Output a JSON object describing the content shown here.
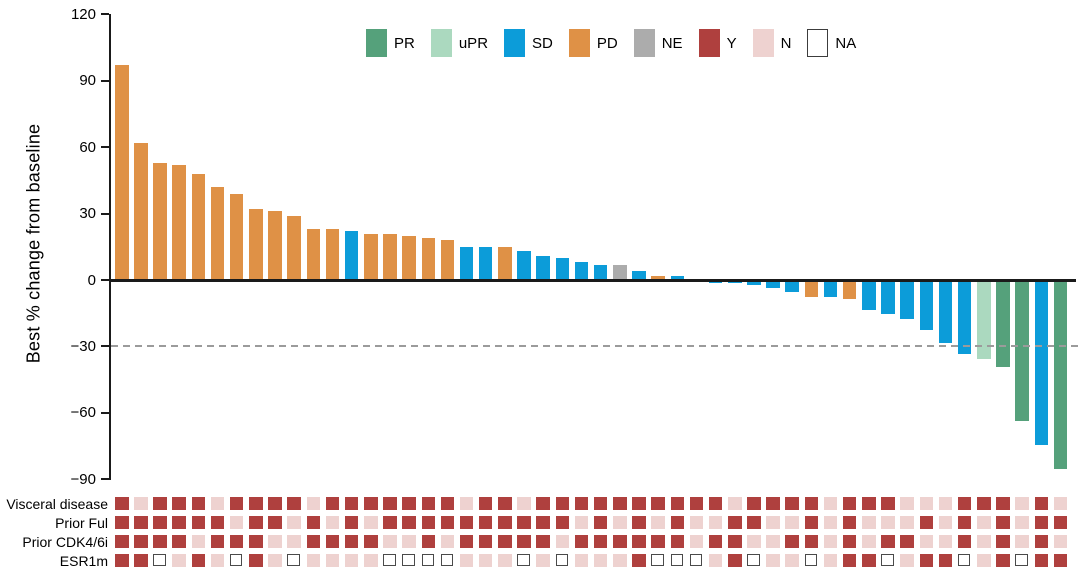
{
  "figure": {
    "ylabel": "Best % change from baseline",
    "yticks": [
      120,
      90,
      60,
      30,
      0,
      -30,
      -60,
      -90
    ],
    "ylim": [
      -90,
      120
    ],
    "reference_line": -30,
    "grid": "off",
    "legend_position": "top-center"
  },
  "colors": {
    "PR": "#55A17B",
    "uPR": "#ABD9BF",
    "SD": "#0C9CD9",
    "PD": "#DF9146",
    "NE": "#ACACAC",
    "Y": "#AF403E",
    "N": "#EED2D0",
    "NA": "#FFFFFF",
    "axis": "#1a1a1a",
    "reference_dash": "#9b9b9b"
  },
  "legend": [
    {
      "label": "PR",
      "category": "PR"
    },
    {
      "label": "uPR",
      "category": "uPR"
    },
    {
      "label": "SD",
      "category": "SD"
    },
    {
      "label": "PD",
      "category": "PD"
    },
    {
      "label": "NE",
      "category": "NE"
    },
    {
      "label": "Y",
      "category": "Y"
    },
    {
      "label": "N",
      "category": "N"
    },
    {
      "label": "NA",
      "category": "NA"
    }
  ],
  "annotation_rows": [
    {
      "key": "visceral",
      "label": "Visceral disease"
    },
    {
      "key": "prior_ful",
      "label": "Prior Ful"
    },
    {
      "key": "prior_cdk",
      "label": "Prior CDK4/6i"
    },
    {
      "key": "esr1m",
      "label": "ESR1m"
    }
  ],
  "chart_data": {
    "type": "bar",
    "title": "",
    "xlabel": "",
    "ylabel": "Best % change from baseline",
    "ylim": [
      -90,
      120
    ],
    "reference_line": -30,
    "patients": [
      {
        "value": 97,
        "response": "PD",
        "visceral": "Y",
        "prior_ful": "Y",
        "prior_cdk": "Y",
        "esr1m": "Y"
      },
      {
        "value": 62,
        "response": "PD",
        "visceral": "N",
        "prior_ful": "Y",
        "prior_cdk": "Y",
        "esr1m": "Y"
      },
      {
        "value": 53,
        "response": "PD",
        "visceral": "Y",
        "prior_ful": "Y",
        "prior_cdk": "Y",
        "esr1m": "NA"
      },
      {
        "value": 52,
        "response": "PD",
        "visceral": "Y",
        "prior_ful": "Y",
        "prior_cdk": "Y",
        "esr1m": "N"
      },
      {
        "value": 48,
        "response": "PD",
        "visceral": "Y",
        "prior_ful": "Y",
        "prior_cdk": "N",
        "esr1m": "Y"
      },
      {
        "value": 42,
        "response": "PD",
        "visceral": "N",
        "prior_ful": "Y",
        "prior_cdk": "Y",
        "esr1m": "N"
      },
      {
        "value": 39,
        "response": "PD",
        "visceral": "Y",
        "prior_ful": "N",
        "prior_cdk": "Y",
        "esr1m": "NA"
      },
      {
        "value": 32,
        "response": "PD",
        "visceral": "Y",
        "prior_ful": "Y",
        "prior_cdk": "Y",
        "esr1m": "Y"
      },
      {
        "value": 31,
        "response": "PD",
        "visceral": "Y",
        "prior_ful": "Y",
        "prior_cdk": "N",
        "esr1m": "N"
      },
      {
        "value": 29,
        "response": "PD",
        "visceral": "Y",
        "prior_ful": "N",
        "prior_cdk": "N",
        "esr1m": "NA"
      },
      {
        "value": 23,
        "response": "PD",
        "visceral": "N",
        "prior_ful": "Y",
        "prior_cdk": "Y",
        "esr1m": "N"
      },
      {
        "value": 23,
        "response": "PD",
        "visceral": "Y",
        "prior_ful": "N",
        "prior_cdk": "Y",
        "esr1m": "N"
      },
      {
        "value": 22,
        "response": "SD",
        "visceral": "Y",
        "prior_ful": "Y",
        "prior_cdk": "Y",
        "esr1m": "N"
      },
      {
        "value": 21,
        "response": "PD",
        "visceral": "Y",
        "prior_ful": "N",
        "prior_cdk": "Y",
        "esr1m": "N"
      },
      {
        "value": 21,
        "response": "PD",
        "visceral": "Y",
        "prior_ful": "Y",
        "prior_cdk": "N",
        "esr1m": "NA"
      },
      {
        "value": 20,
        "response": "PD",
        "visceral": "Y",
        "prior_ful": "Y",
        "prior_cdk": "N",
        "esr1m": "NA"
      },
      {
        "value": 19,
        "response": "PD",
        "visceral": "Y",
        "prior_ful": "Y",
        "prior_cdk": "Y",
        "esr1m": "NA"
      },
      {
        "value": 18,
        "response": "PD",
        "visceral": "Y",
        "prior_ful": "Y",
        "prior_cdk": "N",
        "esr1m": "NA"
      },
      {
        "value": 15,
        "response": "SD",
        "visceral": "N",
        "prior_ful": "Y",
        "prior_cdk": "Y",
        "esr1m": "N"
      },
      {
        "value": 15,
        "response": "SD",
        "visceral": "Y",
        "prior_ful": "Y",
        "prior_cdk": "Y",
        "esr1m": "N"
      },
      {
        "value": 15,
        "response": "PD",
        "visceral": "Y",
        "prior_ful": "Y",
        "prior_cdk": "Y",
        "esr1m": "N"
      },
      {
        "value": 13,
        "response": "SD",
        "visceral": "N",
        "prior_ful": "Y",
        "prior_cdk": "Y",
        "esr1m": "NA"
      },
      {
        "value": 11,
        "response": "SD",
        "visceral": "Y",
        "prior_ful": "Y",
        "prior_cdk": "Y",
        "esr1m": "N"
      },
      {
        "value": 10,
        "response": "SD",
        "visceral": "Y",
        "prior_ful": "Y",
        "prior_cdk": "N",
        "esr1m": "NA"
      },
      {
        "value": 8,
        "response": "SD",
        "visceral": "Y",
        "prior_ful": "N",
        "prior_cdk": "Y",
        "esr1m": "N"
      },
      {
        "value": 7,
        "response": "SD",
        "visceral": "Y",
        "prior_ful": "Y",
        "prior_cdk": "Y",
        "esr1m": "N"
      },
      {
        "value": 7,
        "response": "NE",
        "visceral": "Y",
        "prior_ful": "N",
        "prior_cdk": "Y",
        "esr1m": "N"
      },
      {
        "value": 4,
        "response": "SD",
        "visceral": "Y",
        "prior_ful": "Y",
        "prior_cdk": "Y",
        "esr1m": "Y"
      },
      {
        "value": 2,
        "response": "PD",
        "visceral": "Y",
        "prior_ful": "N",
        "prior_cdk": "Y",
        "esr1m": "NA"
      },
      {
        "value": 2,
        "response": "SD",
        "visceral": "Y",
        "prior_ful": "Y",
        "prior_cdk": "Y",
        "esr1m": "NA"
      },
      {
        "value": 0,
        "response": "SD",
        "visceral": "Y",
        "prior_ful": "N",
        "prior_cdk": "N",
        "esr1m": "NA"
      },
      {
        "value": -1,
        "response": "SD",
        "visceral": "Y",
        "prior_ful": "N",
        "prior_cdk": "Y",
        "esr1m": "N"
      },
      {
        "value": -1,
        "response": "SD",
        "visceral": "N",
        "prior_ful": "Y",
        "prior_cdk": "Y",
        "esr1m": "Y"
      },
      {
        "value": -2,
        "response": "SD",
        "visceral": "Y",
        "prior_ful": "Y",
        "prior_cdk": "N",
        "esr1m": "NA"
      },
      {
        "value": -3,
        "response": "SD",
        "visceral": "Y",
        "prior_ful": "N",
        "prior_cdk": "N",
        "esr1m": "N"
      },
      {
        "value": -5,
        "response": "SD",
        "visceral": "Y",
        "prior_ful": "N",
        "prior_cdk": "Y",
        "esr1m": "N"
      },
      {
        "value": -7,
        "response": "PD",
        "visceral": "Y",
        "prior_ful": "Y",
        "prior_cdk": "Y",
        "esr1m": "NA"
      },
      {
        "value": -7,
        "response": "SD",
        "visceral": "N",
        "prior_ful": "N",
        "prior_cdk": "N",
        "esr1m": "N"
      },
      {
        "value": -8,
        "response": "PD",
        "visceral": "Y",
        "prior_ful": "Y",
        "prior_cdk": "Y",
        "esr1m": "Y"
      },
      {
        "value": -13,
        "response": "SD",
        "visceral": "Y",
        "prior_ful": "N",
        "prior_cdk": "N",
        "esr1m": "Y"
      },
      {
        "value": -15,
        "response": "SD",
        "visceral": "Y",
        "prior_ful": "N",
        "prior_cdk": "Y",
        "esr1m": "NA"
      },
      {
        "value": -17,
        "response": "SD",
        "visceral": "N",
        "prior_ful": "N",
        "prior_cdk": "Y",
        "esr1m": "N"
      },
      {
        "value": -22,
        "response": "SD",
        "visceral": "N",
        "prior_ful": "Y",
        "prior_cdk": "N",
        "esr1m": "Y"
      },
      {
        "value": -28,
        "response": "SD",
        "visceral": "N",
        "prior_ful": "N",
        "prior_cdk": "N",
        "esr1m": "Y"
      },
      {
        "value": -33,
        "response": "SD",
        "visceral": "Y",
        "prior_ful": "Y",
        "prior_cdk": "Y",
        "esr1m": "NA"
      },
      {
        "value": -35,
        "response": "uPR",
        "visceral": "Y",
        "prior_ful": "N",
        "prior_cdk": "N",
        "esr1m": "N"
      },
      {
        "value": -39,
        "response": "PR",
        "visceral": "Y",
        "prior_ful": "Y",
        "prior_cdk": "Y",
        "esr1m": "Y"
      },
      {
        "value": -63,
        "response": "PR",
        "visceral": "N",
        "prior_ful": "N",
        "prior_cdk": "N",
        "esr1m": "NA"
      },
      {
        "value": -74,
        "response": "SD",
        "visceral": "Y",
        "prior_ful": "Y",
        "prior_cdk": "Y",
        "esr1m": "Y"
      },
      {
        "value": -85,
        "response": "PR",
        "visceral": "N",
        "prior_ful": "Y",
        "prior_cdk": "N",
        "esr1m": "Y"
      }
    ]
  }
}
